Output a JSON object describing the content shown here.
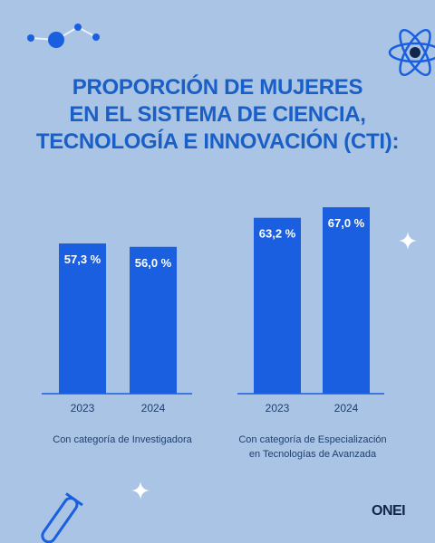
{
  "title_lines": [
    "PROPORCIÓN DE MUJERES",
    "EN EL SISTEMA DE CIENCIA,",
    "TECNOLOGÍA E INNOVACIÓN (CTI):"
  ],
  "colors": {
    "background": "#a9c4e4",
    "bar": "#1a5fe0",
    "title": "#1a5fc6",
    "label": "#ffffff"
  },
  "chart_data": [
    {
      "type": "bar",
      "categories": [
        "2023",
        "2024"
      ],
      "values": [
        57.3,
        56.0
      ],
      "value_labels": [
        "57,3 %",
        "56,0 %"
      ],
      "caption": "Con categoría de Investigadora",
      "unit": "%"
    },
    {
      "type": "bar",
      "categories": [
        "2023",
        "2024"
      ],
      "values": [
        63.2,
        67.0
      ],
      "value_labels": [
        "63,2 %",
        "67,0 %"
      ],
      "caption_lines": [
        "Con categoría de Especialización",
        "en Tecnologías de Avanzada"
      ],
      "unit": "%"
    }
  ],
  "logo": "ONEI"
}
